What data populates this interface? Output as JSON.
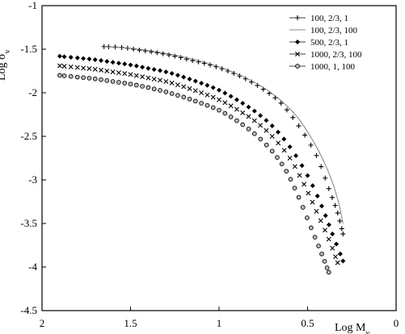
{
  "chart_data": {
    "type": "scatter",
    "title": "",
    "xlabel": "Log M",
    "xlabel_sub": "v",
    "ylabel": "Log σ",
    "ylabel_sub": "v",
    "xlim": [
      2,
      0
    ],
    "ylim": [
      -4.5,
      -1
    ],
    "x_ticks": [
      "2",
      "1.5",
      "1",
      "0.5",
      "0"
    ],
    "y_ticks": [
      "-1",
      "-1.5",
      "-2",
      "-2.5",
      "-3",
      "-3.5",
      "-4",
      "-4.5"
    ],
    "grid": false,
    "legend_position": "top-right",
    "series": [
      {
        "name": "100, 2/3, 1",
        "marker": "plus",
        "points": [
          [
            1.65,
            -1.47
          ],
          [
            1.55,
            -1.48
          ],
          [
            1.45,
            -1.51
          ],
          [
            1.35,
            -1.54
          ],
          [
            1.25,
            -1.58
          ],
          [
            1.15,
            -1.63
          ],
          [
            1.05,
            -1.68
          ],
          [
            0.95,
            -1.75
          ],
          [
            0.85,
            -1.84
          ],
          [
            0.75,
            -1.96
          ],
          [
            0.65,
            -2.12
          ],
          [
            0.55,
            -2.38
          ],
          [
            0.45,
            -2.72
          ],
          [
            0.38,
            -3.1
          ],
          [
            0.33,
            -3.38
          ],
          [
            0.3,
            -3.62
          ]
        ]
      },
      {
        "name": "100, 2/3, 100",
        "marker": "line",
        "points": [
          [
            1.65,
            -1.47
          ],
          [
            1.5,
            -1.49
          ],
          [
            1.35,
            -1.53
          ],
          [
            1.2,
            -1.59
          ],
          [
            1.05,
            -1.67
          ],
          [
            0.95,
            -1.74
          ],
          [
            0.85,
            -1.83
          ],
          [
            0.75,
            -1.94
          ],
          [
            0.65,
            -2.09
          ],
          [
            0.55,
            -2.3
          ],
          [
            0.45,
            -2.62
          ],
          [
            0.38,
            -2.92
          ],
          [
            0.33,
            -3.22
          ],
          [
            0.3,
            -3.5
          ]
        ]
      },
      {
        "name": "500, 2/3, 1",
        "marker": "diamond",
        "points": [
          [
            1.9,
            -1.58
          ],
          [
            1.8,
            -1.6
          ],
          [
            1.7,
            -1.62
          ],
          [
            1.6,
            -1.65
          ],
          [
            1.5,
            -1.68
          ],
          [
            1.4,
            -1.72
          ],
          [
            1.3,
            -1.76
          ],
          [
            1.2,
            -1.82
          ],
          [
            1.1,
            -1.89
          ],
          [
            1.0,
            -1.97
          ],
          [
            0.9,
            -2.08
          ],
          [
            0.8,
            -2.21
          ],
          [
            0.7,
            -2.38
          ],
          [
            0.6,
            -2.62
          ],
          [
            0.5,
            -2.95
          ],
          [
            0.42,
            -3.3
          ],
          [
            0.36,
            -3.62
          ],
          [
            0.3,
            -3.93
          ]
        ]
      },
      {
        "name": "1000, 2/3, 100",
        "marker": "cross",
        "points": [
          [
            1.9,
            -1.69
          ],
          [
            1.8,
            -1.71
          ],
          [
            1.7,
            -1.73
          ],
          [
            1.6,
            -1.76
          ],
          [
            1.5,
            -1.79
          ],
          [
            1.4,
            -1.83
          ],
          [
            1.3,
            -1.87
          ],
          [
            1.2,
            -1.93
          ],
          [
            1.1,
            -2.0
          ],
          [
            1.0,
            -2.08
          ],
          [
            0.9,
            -2.19
          ],
          [
            0.8,
            -2.32
          ],
          [
            0.7,
            -2.5
          ],
          [
            0.6,
            -2.75
          ],
          [
            0.52,
            -3.05
          ],
          [
            0.45,
            -3.36
          ],
          [
            0.38,
            -3.68
          ],
          [
            0.33,
            -3.95
          ]
        ]
      },
      {
        "name": "1000, 1, 100",
        "marker": "circle",
        "points": [
          [
            1.9,
            -1.8
          ],
          [
            1.8,
            -1.82
          ],
          [
            1.7,
            -1.84
          ],
          [
            1.6,
            -1.87
          ],
          [
            1.5,
            -1.9
          ],
          [
            1.4,
            -1.94
          ],
          [
            1.3,
            -1.99
          ],
          [
            1.2,
            -2.05
          ],
          [
            1.1,
            -2.12
          ],
          [
            1.0,
            -2.2
          ],
          [
            0.9,
            -2.32
          ],
          [
            0.8,
            -2.47
          ],
          [
            0.7,
            -2.67
          ],
          [
            0.62,
            -2.9
          ],
          [
            0.55,
            -3.2
          ],
          [
            0.48,
            -3.55
          ],
          [
            0.42,
            -3.85
          ],
          [
            0.38,
            -4.06
          ]
        ]
      }
    ]
  }
}
